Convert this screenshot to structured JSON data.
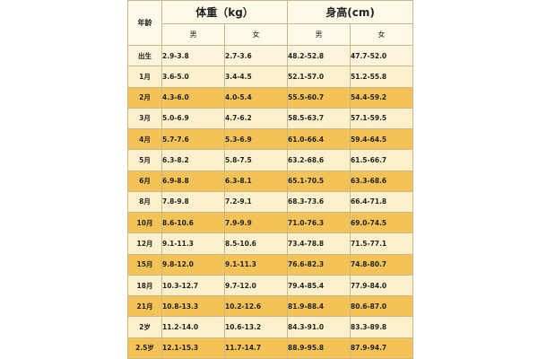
{
  "header": {
    "age_label": "年龄",
    "weight_label": "体重（kg）",
    "height_label": "身高(cm)",
    "male": "男",
    "female": "女"
  },
  "rows": [
    {
      "age": "出生",
      "weight_male": "2.9-3.8",
      "weight_female": "2.7-3.6",
      "height_male": "48.2-52.8",
      "height_female": "47.7-52.0"
    },
    {
      "age": "1月",
      "weight_male": "3.6-5.0",
      "weight_female": "3.4-4.5",
      "height_male": "52.1-57.0",
      "height_female": "51.2-55.8"
    },
    {
      "age": "2月",
      "weight_male": "4.3-6.0",
      "weight_female": "4.0-5.4",
      "height_male": "55.5-60.7",
      "height_female": "54.4-59.2"
    },
    {
      "age": "3月",
      "weight_male": "5.0-6.9",
      "weight_female": "4.7-6.2",
      "height_male": "58.5-63.7",
      "height_female": "57.1-59.5"
    },
    {
      "age": "4月",
      "weight_male": "5.7-7.6",
      "weight_female": "5.3-6.9",
      "height_male": "61.0-66.4",
      "height_female": "59.4-64.5"
    },
    {
      "age": "5月",
      "weight_male": "6.3-8.2",
      "weight_female": "5.8-7.5",
      "height_male": "63.2-68.6",
      "height_female": "61.5-66.7"
    },
    {
      "age": "6月",
      "weight_male": "6.9-8.8",
      "weight_female": "6.3-8.1",
      "height_male": "65.1-70.5",
      "height_female": "63.3-68.6"
    },
    {
      "age": "8月",
      "weight_male": "7.8-9.8",
      "weight_female": "7.2-9.1",
      "height_male": "68.3-73.6",
      "height_female": "66.4-71.8"
    },
    {
      "age": "10月",
      "weight_male": "8.6-10.6",
      "weight_female": "7.9-9.9",
      "height_male": "71.0-76.3",
      "height_female": "69.0-74.5"
    },
    {
      "age": "12月",
      "weight_male": "9.1-11.3",
      "weight_female": "8.5-10.6",
      "height_male": "73.4-78.8",
      "height_female": "71.5-77.1"
    },
    {
      "age": "15月",
      "weight_male": "9.8-12.0",
      "weight_female": "9.1-11.3",
      "height_male": "76.6-82.3",
      "height_female": "74.8-80.7"
    },
    {
      "age": "18月",
      "weight_male": "10.3-12.7",
      "weight_female": "9.7-12.0",
      "height_male": "79.4-85.4",
      "height_female": "77.9-84.0"
    },
    {
      "age": "21月",
      "weight_male": "10.8-13.3",
      "weight_female": "10.2-12.6",
      "height_male": "81.9-88.4",
      "height_female": "80.6-87.0"
    },
    {
      "age": "2岁",
      "weight_male": "11.2-14.0",
      "weight_female": "10.6-13.2",
      "height_male": "84.3-91.0",
      "height_female": "83.3-89.8"
    },
    {
      "age": "2.5岁",
      "weight_male": "12.1-15.3",
      "weight_female": "11.7-14.7",
      "height_male": "88.9-95.8",
      "height_female": "87.9-94.7"
    }
  ],
  "colors": {
    "header_bg": "#fff9e8",
    "row_light": "#fdf1cd",
    "row_dark": "#f4c357",
    "border": "#c9b98a"
  }
}
